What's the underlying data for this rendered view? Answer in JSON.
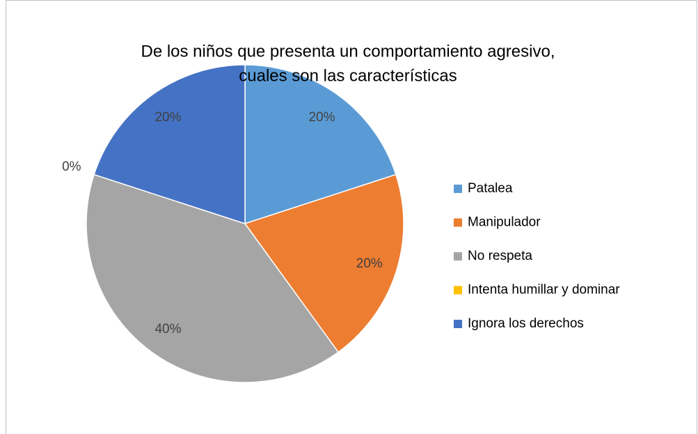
{
  "chart_data": {
    "type": "pie",
    "title": [
      "De los niños que presenta un comportamiento agresivo,",
      "cuales son las características"
    ],
    "categories": [
      "Patalea",
      "Manipulador",
      "No respeta",
      "Intenta humillar y dominar",
      "Ignora los derechos"
    ],
    "values": [
      20,
      20,
      40,
      0,
      20
    ],
    "value_labels": [
      "20%",
      "20%",
      "40%",
      "0%",
      "20%"
    ],
    "colors": [
      "#5b9bd5",
      "#ed7d31",
      "#a5a5a5",
      "#ffc000",
      "#4472c4"
    ],
    "legend": "right"
  }
}
